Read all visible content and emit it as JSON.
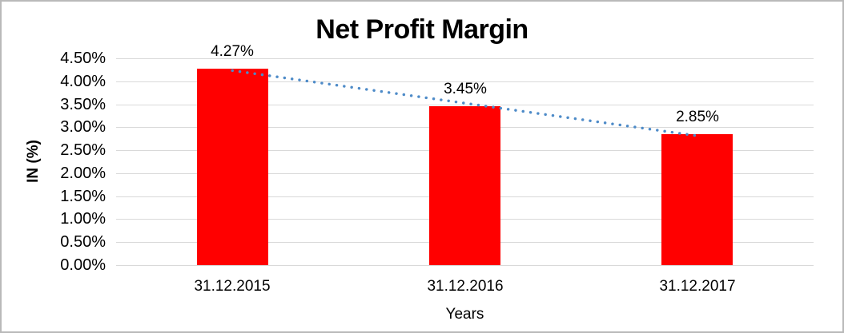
{
  "chart_data": {
    "type": "bar",
    "title": "Net Profit Margin",
    "xlabel": "Years",
    "ylabel": "IN (%)",
    "categories": [
      "31.12.2015",
      "31.12.2016",
      "31.12.2017"
    ],
    "values": [
      4.27,
      3.45,
      2.85
    ],
    "data_labels": [
      "4.27%",
      "3.45%",
      "2.85%"
    ],
    "ylim": [
      0,
      4.5
    ],
    "ytick_step": 0.5,
    "ytick_labels": [
      "0.00%",
      "0.50%",
      "1.00%",
      "1.50%",
      "2.00%",
      "2.50%",
      "3.00%",
      "3.50%",
      "4.00%",
      "4.50%"
    ],
    "grid": true,
    "legend": "none",
    "trendline": {
      "type": "linear",
      "style": "dotted"
    },
    "colors": {
      "bar": "#FF0000",
      "trendline": "#4E8BC8",
      "gridline": "#D9D9D9",
      "text": "#000000"
    }
  }
}
